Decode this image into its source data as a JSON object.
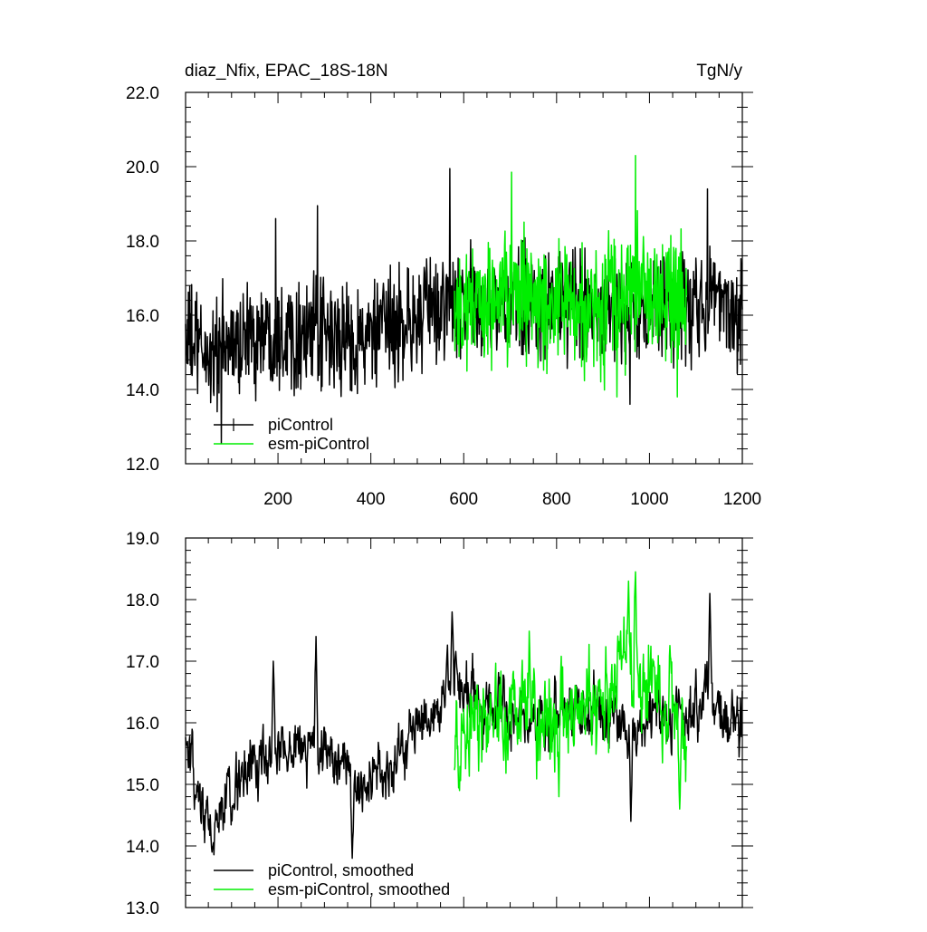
{
  "chart_data": [
    {
      "type": "line",
      "title": "diaz_Nfix, EPAC_18S-18N",
      "units": "TgN/y",
      "xlim": [
        1,
        1200
      ],
      "ylim": [
        12.0,
        22.0
      ],
      "xticks": [
        200,
        400,
        600,
        800,
        1000,
        1200
      ],
      "xtick_labels": [
        "200",
        "400",
        "600",
        "800",
        "1000",
        "1200"
      ],
      "yticks": [
        12.0,
        14.0,
        16.0,
        18.0,
        20.0,
        22.0
      ],
      "ytick_labels": [
        "12.0",
        "14.0",
        "16.0",
        "18.0",
        "20.0",
        "22.0"
      ],
      "legend_position": "bottom-left",
      "series": [
        {
          "name": "piControl",
          "color": "#000000",
          "x_range": [
            1,
            1200
          ],
          "anchors": [
            [
              1,
              15.5
            ],
            [
              20,
              15.2
            ],
            [
              50,
              14.9
            ],
            [
              100,
              15.2
            ],
            [
              150,
              15.5
            ],
            [
              200,
              15.6
            ],
            [
              250,
              15.5
            ],
            [
              300,
              15.4
            ],
            [
              350,
              15.3
            ],
            [
              400,
              15.4
            ],
            [
              450,
              15.7
            ],
            [
              500,
              15.9
            ],
            [
              550,
              16.2
            ],
            [
              600,
              16.3
            ],
            [
              650,
              16.2
            ],
            [
              700,
              16.2
            ],
            [
              750,
              16.3
            ],
            [
              800,
              16.2
            ],
            [
              850,
              16.4
            ],
            [
              900,
              16.3
            ],
            [
              950,
              16.0
            ],
            [
              1000,
              16.1
            ],
            [
              1050,
              16.2
            ],
            [
              1100,
              16.2
            ],
            [
              1150,
              16.6
            ],
            [
              1200,
              16.0
            ]
          ],
          "noise_amplitude": 1.1,
          "peaks": [
            [
              570,
              19.95
            ],
            [
              1125,
              19.4
            ],
            [
              285,
              18.95
            ],
            [
              195,
              18.6
            ],
            [
              958,
              13.6
            ],
            [
              78,
              12.55
            ]
          ]
        },
        {
          "name": "esm-piControl",
          "color": "#00ee00",
          "x_range": [
            580,
            1080
          ],
          "anchors": [
            [
              580,
              16.2
            ],
            [
              650,
              16.2
            ],
            [
              700,
              16.5
            ],
            [
              800,
              16.3
            ],
            [
              900,
              16.2
            ],
            [
              970,
              16.8
            ],
            [
              1080,
              16.0
            ]
          ],
          "noise_amplitude": 1.3,
          "peaks": [
            [
              970,
              20.3
            ],
            [
              703,
              19.85
            ],
            [
              930,
              13.8
            ],
            [
              1060,
              13.8
            ]
          ]
        }
      ]
    },
    {
      "type": "line",
      "title": "",
      "xlim": [
        1,
        1200
      ],
      "ylim": [
        13.0,
        19.0
      ],
      "yticks": [
        13.0,
        14.0,
        15.0,
        16.0,
        17.0,
        18.0,
        19.0
      ],
      "ytick_labels": [
        "13.0",
        "14.0",
        "15.0",
        "16.0",
        "17.0",
        "18.0",
        "19.0"
      ],
      "legend_position": "bottom-left",
      "series": [
        {
          "name": "piControl, smoothed",
          "color": "#000000",
          "x_range": [
            1,
            1200
          ],
          "anchors": [
            [
              1,
              15.6
            ],
            [
              30,
              14.6
            ],
            [
              50,
              14.2
            ],
            [
              90,
              14.7
            ],
            [
              130,
              15.2
            ],
            [
              170,
              15.4
            ],
            [
              220,
              15.6
            ],
            [
              290,
              15.7
            ],
            [
              330,
              15.3
            ],
            [
              370,
              15.0
            ],
            [
              420,
              15.1
            ],
            [
              470,
              15.6
            ],
            [
              530,
              16.1
            ],
            [
              580,
              16.6
            ],
            [
              650,
              16.3
            ],
            [
              720,
              16.1
            ],
            [
              800,
              16.2
            ],
            [
              880,
              16.3
            ],
            [
              950,
              15.9
            ],
            [
              1020,
              16.2
            ],
            [
              1080,
              16.1
            ],
            [
              1130,
              16.5
            ],
            [
              1200,
              16.0
            ]
          ],
          "noise_amplitude": 0.45,
          "peaks": [
            [
              1130,
              18.1
            ],
            [
              282,
              17.4
            ],
            [
              190,
              17.0
            ],
            [
              960,
              14.4
            ],
            [
              360,
              13.8
            ],
            [
              58,
              13.9
            ],
            [
              575,
              17.8
            ]
          ]
        },
        {
          "name": "esm-piControl, smoothed",
          "color": "#00ee00",
          "x_range": [
            580,
            1080
          ],
          "anchors": [
            [
              580,
              15.3
            ],
            [
              650,
              16.2
            ],
            [
              700,
              16.3
            ],
            [
              800,
              16.1
            ],
            [
              900,
              16.3
            ],
            [
              960,
              16.8
            ],
            [
              1000,
              16.3
            ],
            [
              1080,
              16.0
            ]
          ],
          "noise_amplitude": 0.7,
          "peaks": [
            [
              970,
              18.45
            ],
            [
              955,
              18.3
            ],
            [
              1065,
              14.6
            ],
            [
              805,
              14.8
            ]
          ]
        }
      ]
    }
  ]
}
